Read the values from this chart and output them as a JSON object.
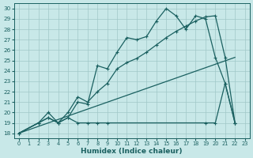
{
  "xlabel": "Humidex (Indice chaleur)",
  "bg_color": "#c8e8e8",
  "grid_color": "#a0c8c8",
  "line_color": "#1a6060",
  "xlim": [
    -0.5,
    23.5
  ],
  "ylim": [
    17.5,
    30.5
  ],
  "xticks": [
    0,
    1,
    2,
    3,
    4,
    5,
    6,
    7,
    8,
    9,
    10,
    11,
    12,
    13,
    14,
    15,
    16,
    17,
    18,
    19,
    20,
    21,
    22,
    23
  ],
  "yticks": [
    18,
    19,
    20,
    21,
    22,
    23,
    24,
    25,
    26,
    27,
    28,
    29,
    30
  ],
  "line_upper_x": [
    0,
    2,
    3,
    4,
    5,
    6,
    7,
    8,
    9,
    10,
    11,
    12,
    13,
    14,
    15,
    16,
    17,
    18,
    19,
    20,
    21,
    22
  ],
  "line_upper_y": [
    18,
    19.0,
    19.5,
    19.0,
    19.5,
    21.0,
    20.8,
    24.5,
    24.2,
    25.8,
    27.2,
    27.0,
    27.3,
    28.8,
    30.0,
    29.3,
    28.0,
    29.3,
    29.0,
    25.3,
    22.8,
    19.0
  ],
  "line_mid_x": [
    0,
    2,
    3,
    4,
    5,
    6,
    7,
    8,
    9,
    10,
    11,
    12,
    13,
    14,
    15,
    16,
    17,
    18,
    19,
    20,
    21,
    22
  ],
  "line_mid_y": [
    18,
    19.0,
    20.0,
    19.0,
    20.0,
    21.5,
    21.0,
    22.0,
    22.8,
    24.2,
    24.8,
    25.2,
    25.8,
    26.5,
    27.2,
    27.8,
    28.3,
    28.8,
    29.2,
    29.3,
    25.3,
    19.0
  ],
  "line_lower_x": [
    0,
    2,
    3,
    4,
    5,
    6,
    7,
    8,
    9,
    19,
    20,
    21,
    22
  ],
  "line_lower_y": [
    18,
    19.0,
    19.5,
    19.0,
    19.5,
    19.0,
    19.0,
    19.0,
    19.0,
    19.0,
    19.0,
    22.8,
    19.0
  ],
  "trend_x": [
    0,
    22
  ],
  "trend_y": [
    18,
    25.3
  ]
}
